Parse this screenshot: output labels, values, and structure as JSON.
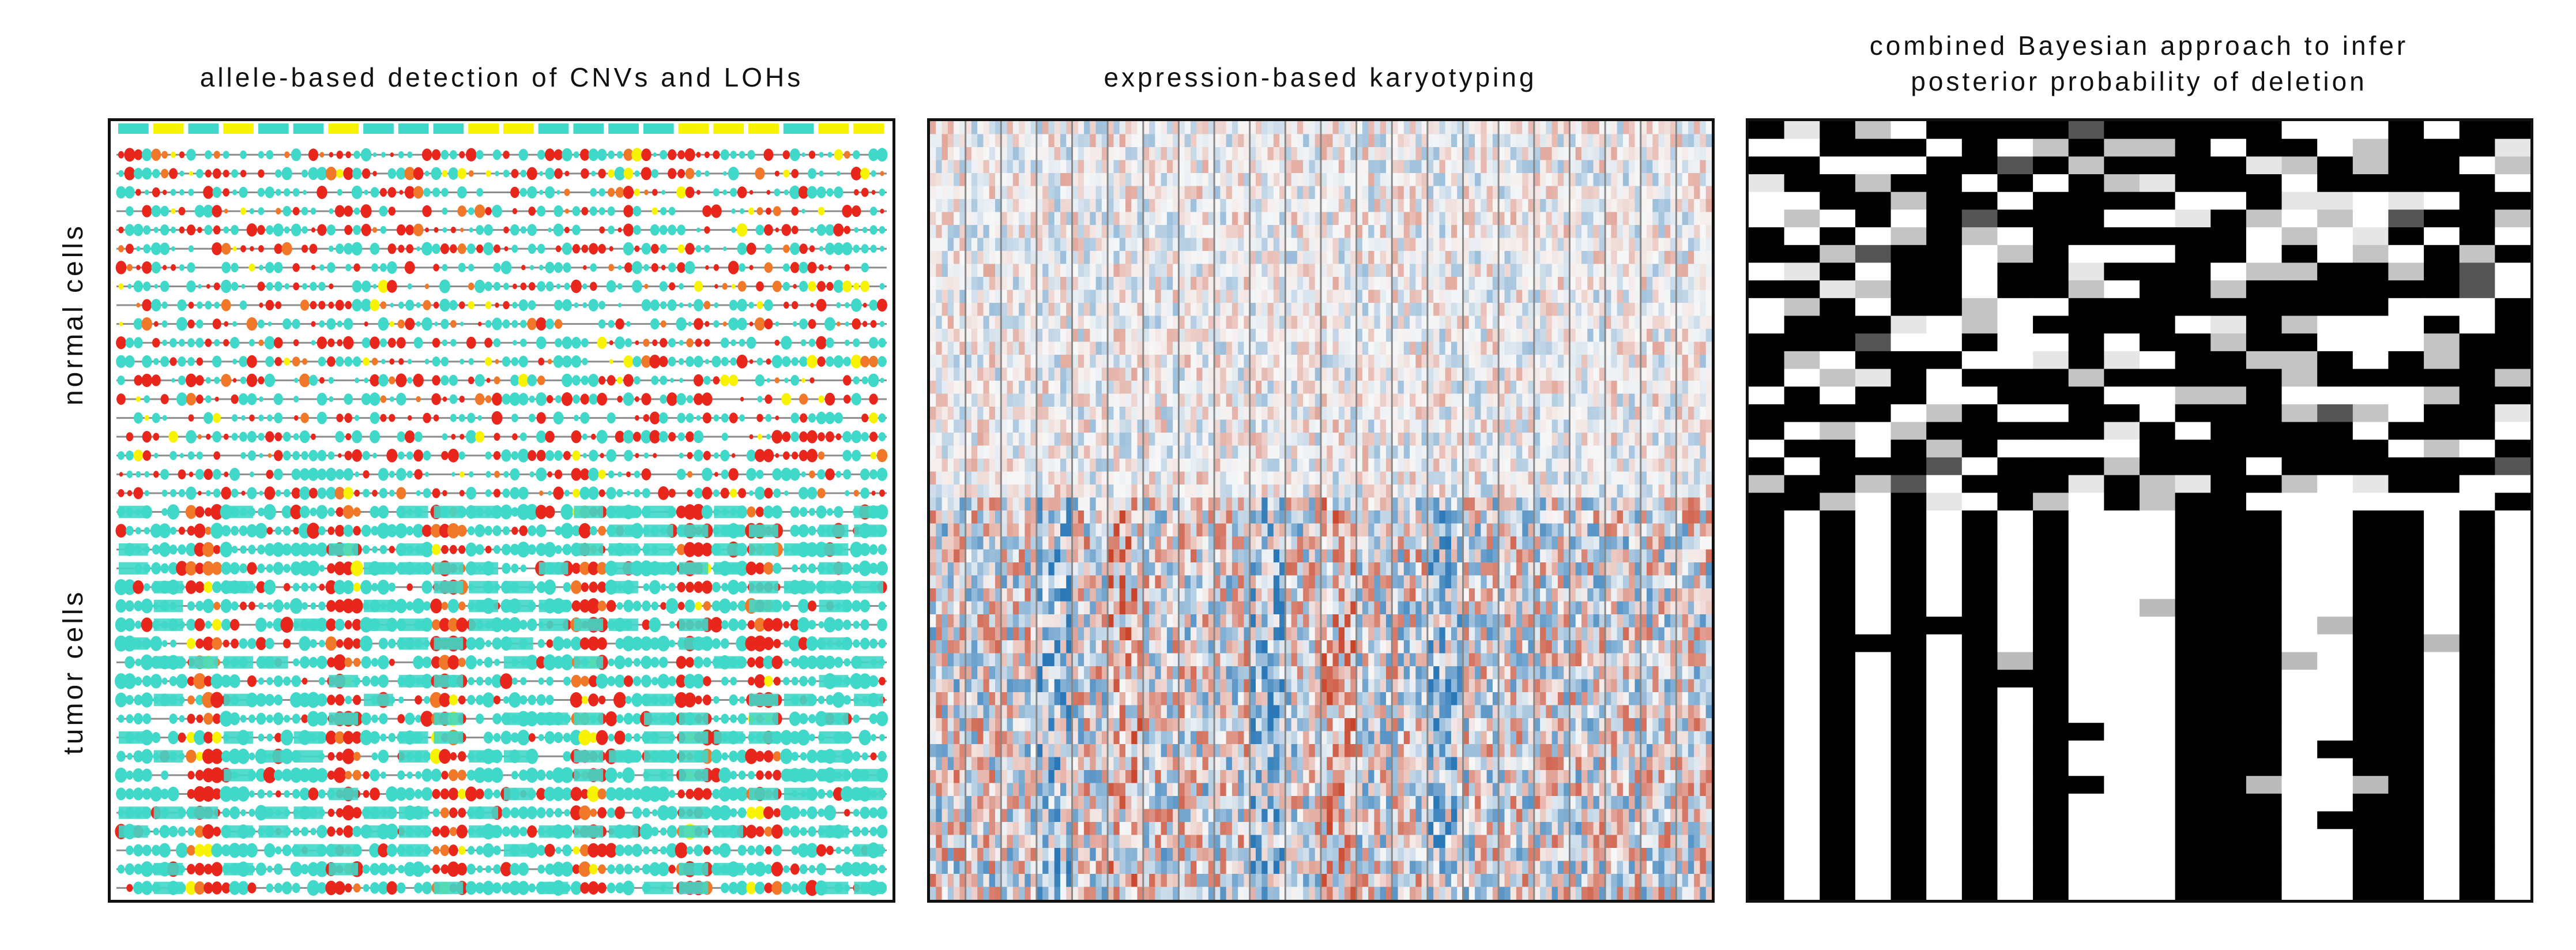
{
  "figure": {
    "panels": [
      {
        "id": "allele",
        "title": "allele-based detection of CNVs and LOHs"
      },
      {
        "id": "expression",
        "title": "expression-based karyotyping"
      },
      {
        "id": "bayesian",
        "title_line1": "combined Bayesian approach to infer",
        "title_line2": "posterior probability of deletion"
      }
    ],
    "row_groups": {
      "normal": "normal cells",
      "tumor": "tumor cells"
    }
  },
  "colors": {
    "cyan": "#40d8c8",
    "red": "#e8261c",
    "orange": "#f07828",
    "yellow": "#f8f400",
    "grey_line": "#8c8c8c",
    "heat_red": "#c8442a",
    "heat_blue": "#2a78b8",
    "frame": "#111111"
  },
  "structure": {
    "allele_rows": 40,
    "allele_regions": 22,
    "expression_rows": 60,
    "expression_segments": 22,
    "bayes_rows": 44,
    "bayes_cols": 22,
    "normal_fraction": 0.48
  }
}
